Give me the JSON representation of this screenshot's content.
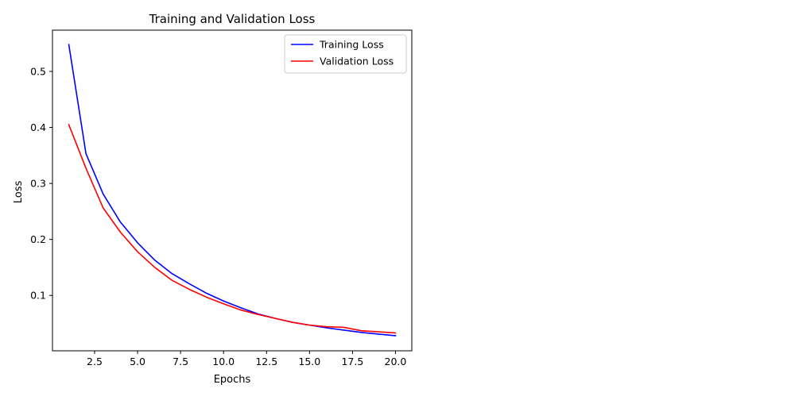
{
  "chart_data": {
    "type": "line",
    "title": "Training and Validation Loss",
    "xlabel": "Epochs",
    "ylabel": "Loss",
    "xlim": [
      0.05,
      20.95
    ],
    "ylim": [
      0.0011,
      0.5737
    ],
    "x_ticks": [
      2.5,
      5.0,
      7.5,
      10.0,
      12.5,
      15.0,
      17.5,
      20.0
    ],
    "x_tick_labels": [
      "2.5",
      "5.0",
      "7.5",
      "10.0",
      "12.5",
      "15.0",
      "17.5",
      "20.0"
    ],
    "y_ticks": [
      0.1,
      0.2,
      0.3,
      0.4,
      0.5
    ],
    "y_tick_labels": [
      "0.1",
      "0.2",
      "0.3",
      "0.4",
      "0.5"
    ],
    "grid": false,
    "legend_position": "top-right",
    "x": [
      1,
      2,
      3,
      4,
      5,
      6,
      7,
      8,
      9,
      10,
      11,
      12,
      13,
      14,
      15,
      16,
      17,
      18,
      19,
      20
    ],
    "series": [
      {
        "name": "Training Loss",
        "color": "#0000ff",
        "values": [
          0.548,
          0.353,
          0.281,
          0.231,
          0.194,
          0.163,
          0.139,
          0.121,
          0.104,
          0.09,
          0.078,
          0.067,
          0.059,
          0.052,
          0.047,
          0.042,
          0.038,
          0.034,
          0.031,
          0.028
        ]
      },
      {
        "name": "Validation Loss",
        "color": "#ff0000",
        "values": [
          0.405,
          0.327,
          0.256,
          0.213,
          0.178,
          0.15,
          0.127,
          0.111,
          0.097,
          0.085,
          0.074,
          0.066,
          0.059,
          0.052,
          0.047,
          0.044,
          0.043,
          0.037,
          0.035,
          0.033
        ]
      }
    ]
  }
}
